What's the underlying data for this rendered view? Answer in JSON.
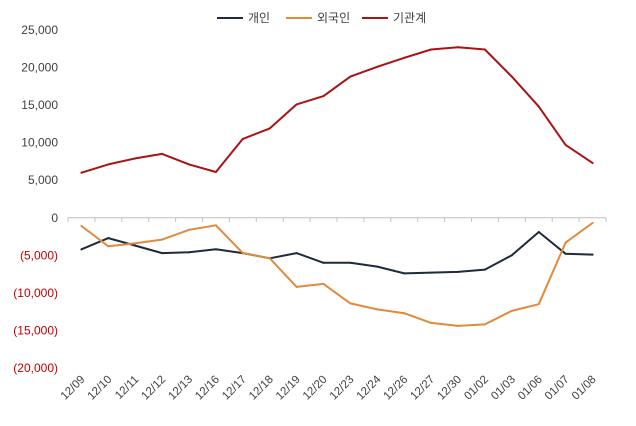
{
  "chart_data": {
    "type": "line",
    "title": "",
    "xlabel": "",
    "ylabel": "",
    "ylim": [
      -20000,
      25000
    ],
    "grid": false,
    "legend_position": "top",
    "categories": [
      "12/09",
      "12/10",
      "12/11",
      "12/12",
      "12/13",
      "12/16",
      "12/17",
      "12/18",
      "12/19",
      "12/20",
      "12/23",
      "12/24",
      "12/26",
      "12/27",
      "12/30",
      "01/02",
      "01/03",
      "01/06",
      "01/07",
      "01/08"
    ],
    "y_ticks": [
      {
        "value": 25000,
        "label": "25,000"
      },
      {
        "value": 20000,
        "label": "20,000"
      },
      {
        "value": 15000,
        "label": "15,000"
      },
      {
        "value": 10000,
        "label": "10,000"
      },
      {
        "value": 5000,
        "label": "5,000"
      },
      {
        "value": 0,
        "label": "0"
      },
      {
        "value": -5000,
        "label": "(5,000)"
      },
      {
        "value": -10000,
        "label": "(10,000)"
      },
      {
        "value": -15000,
        "label": "(15,000)"
      },
      {
        "value": -20000,
        "label": "(20,000)"
      }
    ],
    "series": [
      {
        "name": "개인",
        "color": "#1f2a3c",
        "values": [
          -4200,
          -2700,
          -3700,
          -4700,
          -4600,
          -4200,
          -4700,
          -5400,
          -4700,
          -6000,
          -6000,
          -6500,
          -7400,
          -7300,
          -7200,
          -6900,
          -5000,
          -1900,
          -4800,
          -4900
        ]
      },
      {
        "name": "외국인",
        "color": "#e08a3c",
        "values": [
          -1100,
          -3800,
          -3400,
          -2900,
          -1600,
          -1000,
          -4700,
          -5400,
          -9200,
          -8800,
          -11400,
          -12200,
          -12700,
          -14000,
          -14400,
          -14200,
          -12400,
          -11500,
          -3300,
          -700
        ]
      },
      {
        "name": "기관계",
        "color": "#a81416",
        "values": [
          6000,
          7100,
          7900,
          8500,
          7100,
          6100,
          10500,
          11900,
          15100,
          16200,
          18800,
          20100,
          21300,
          22400,
          22700,
          22400,
          18800,
          14800,
          9700,
          7300
        ]
      }
    ]
  }
}
